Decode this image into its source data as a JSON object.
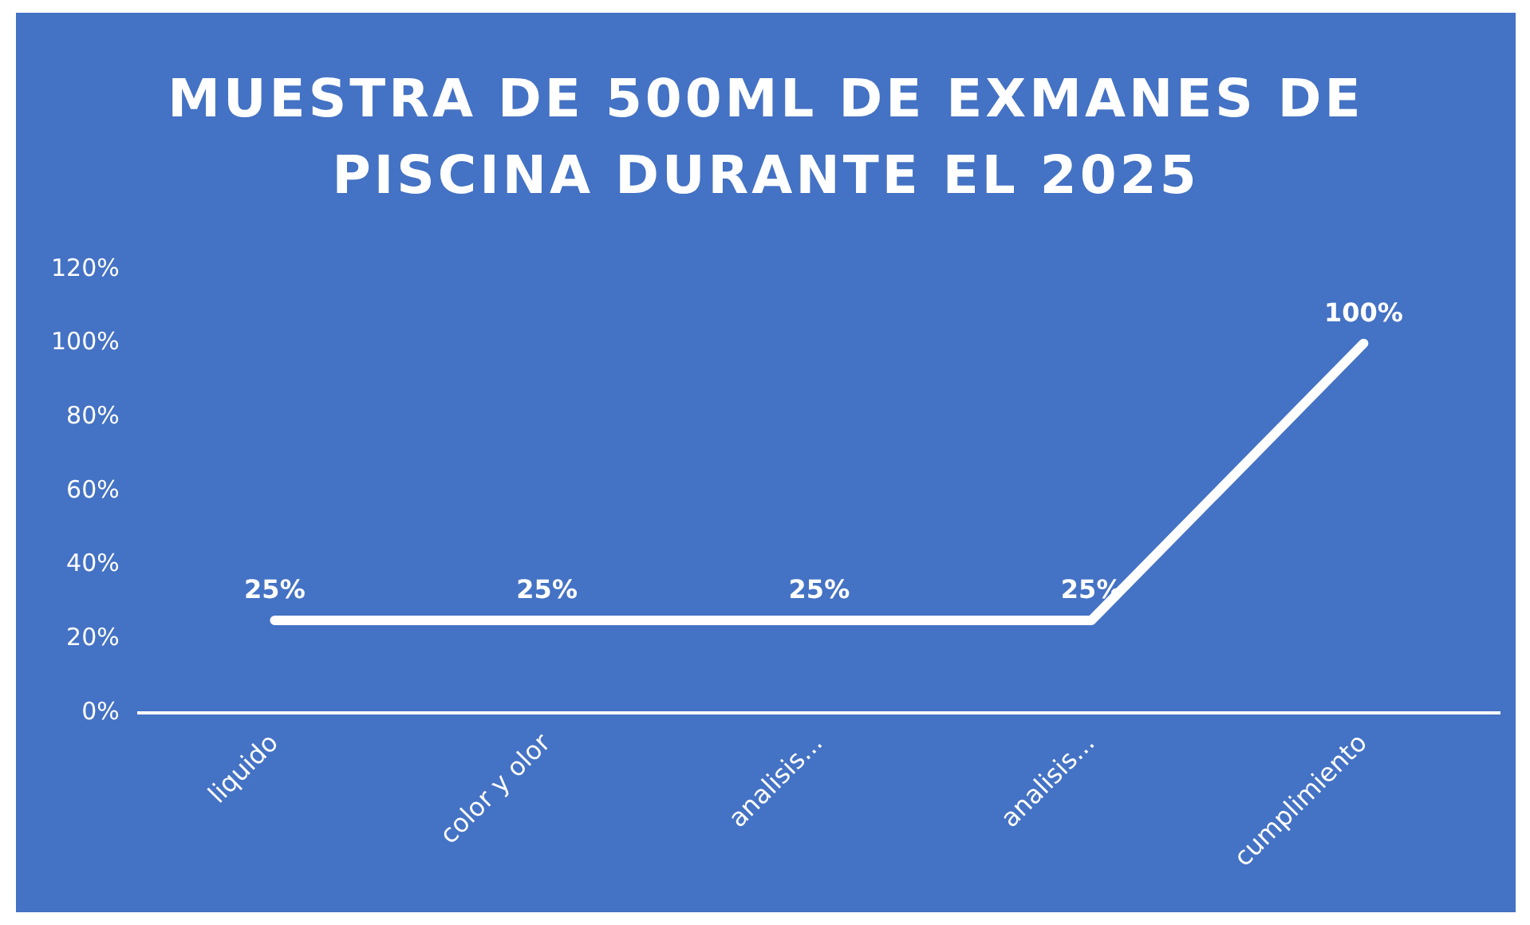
{
  "chart_data": {
    "type": "line",
    "title": "MUESTRA DE 500ML DE EXMANES DE PISCINA DURANTE EL 2025",
    "categories": [
      "liquido",
      "color y olor",
      "analisis...",
      "analisis...",
      "cumplimiento"
    ],
    "series": [
      {
        "color": "#ffffff",
        "values": [
          25,
          25,
          25,
          25,
          100
        ],
        "value_labels": [
          "25%",
          "25%",
          "25%",
          "25%",
          "100%"
        ]
      }
    ],
    "ylim": [
      0,
      120
    ],
    "yticks": [
      {
        "value": 0,
        "label": "0%"
      },
      {
        "value": 20,
        "label": "20%"
      },
      {
        "value": 40,
        "label": "40%"
      },
      {
        "value": 60,
        "label": "60%"
      },
      {
        "value": 80,
        "label": "80%"
      },
      {
        "value": 100,
        "label": "100%"
      },
      {
        "value": 120,
        "label": "120%"
      }
    ],
    "grid": false,
    "legend": false,
    "marker": "none",
    "line_style": "solid"
  }
}
